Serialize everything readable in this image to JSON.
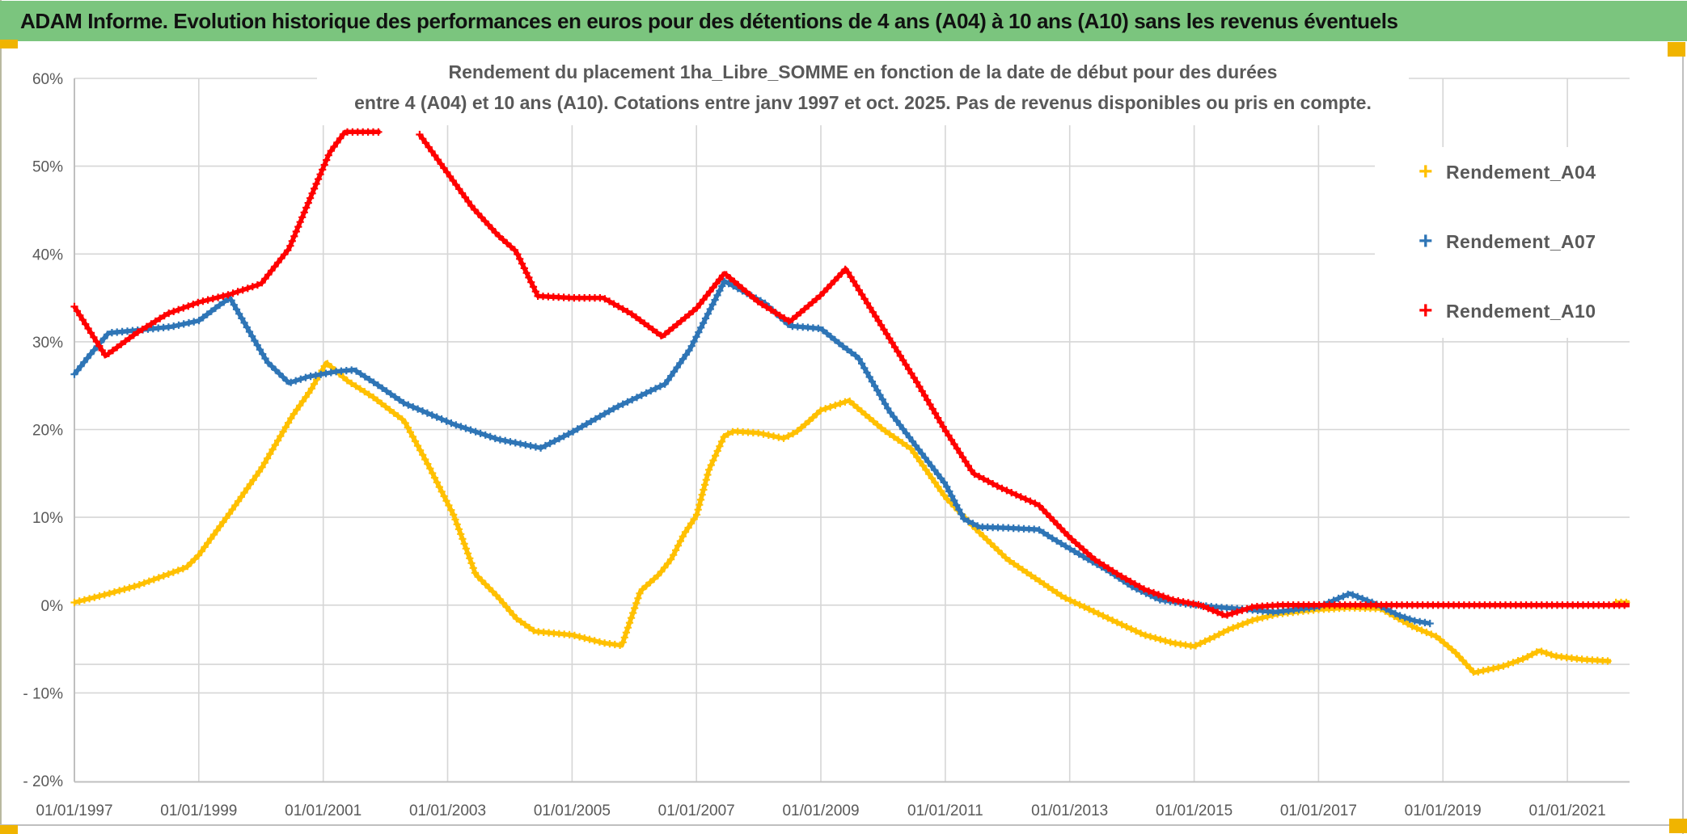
{
  "page": {
    "title": "ADAM Informe. Evolution historique des performances en euros pour des détentions de 4 ans (A04) à 10 ans (A10) sans les revenus éventuels",
    "title_bar_color": "#7bc57e",
    "corner_mark_color": "#f0b400",
    "text_grey": "#595959",
    "gridline_color": "#d6d6d6",
    "axis_border_color": "#bfbfbf"
  },
  "chart_data": {
    "type": "line",
    "title_line1": "Rendement du placement 1ha_Libre_SOMME en fonction de la date de début pour des durées",
    "title_line2": "entre 4 (A04) et 10 ans (A10). Cotations entre janv 1997 et oct. 2025. Pas de revenus disponibles ou pris en compte.",
    "marker_glyph": "+",
    "grid": "on",
    "legend_position": "right-inside",
    "x_axis": {
      "min_year": 1997,
      "max_year": 2022,
      "tick_years": [
        1997,
        1999,
        2001,
        2003,
        2005,
        2007,
        2009,
        2011,
        2013,
        2015,
        2017,
        2019,
        2021
      ],
      "tick_labels": [
        "01/01/1997",
        "01/01/1999",
        "01/01/2001",
        "01/01/2003",
        "01/01/2005",
        "01/01/2007",
        "01/01/2009",
        "01/01/2011",
        "01/01/2013",
        "01/01/2015",
        "01/01/2017",
        "01/01/2019",
        "01/01/2021"
      ]
    },
    "y_axis": {
      "min": -20,
      "max": 60,
      "unit": "%",
      "tick_values": [
        60,
        50,
        40,
        30,
        20,
        10,
        0,
        -10,
        -20
      ],
      "tick_labels": [
        "60%",
        "50%",
        "40%",
        "30%",
        "20%",
        "10%",
        "0%",
        "- 10%",
        "- 20%"
      ]
    },
    "extra_axis_line_value": -6.75,
    "legend": [
      {
        "label": "Rendement_A04",
        "marker": "+",
        "color": "#FFC000"
      },
      {
        "label": "Rendement_A07",
        "marker": "+",
        "color": "#2E75B6"
      },
      {
        "label": "Rendement_A10",
        "marker": "+",
        "color": "#FF0000"
      }
    ],
    "series": [
      {
        "name": "Rendement_A04",
        "color": "#FFC000",
        "segments": [
          [
            [
              1997.0,
              0.3
            ],
            [
              1997.5,
              1.2
            ],
            [
              1998.0,
              2.2
            ],
            [
              1998.5,
              3.5
            ],
            [
              1998.8,
              4.3
            ],
            [
              1999.0,
              5.7
            ],
            [
              1999.5,
              10.5
            ],
            [
              2000.0,
              15.5
            ],
            [
              2000.5,
              21.5
            ],
            [
              2000.8,
              24.5
            ],
            [
              2001.05,
              27.6
            ],
            [
              2001.4,
              25.5
            ],
            [
              2001.8,
              23.7
            ],
            [
              2002.3,
              21.0
            ],
            [
              2002.7,
              15.8
            ],
            [
              2003.1,
              10.2
            ],
            [
              2003.45,
              3.5
            ],
            [
              2003.8,
              1.0
            ],
            [
              2004.1,
              -1.5
            ],
            [
              2004.4,
              -3.0
            ],
            [
              2005.0,
              -3.4
            ],
            [
              2005.5,
              -4.3
            ],
            [
              2005.8,
              -4.6
            ],
            [
              2006.1,
              1.6
            ],
            [
              2006.4,
              3.5
            ],
            [
              2006.6,
              5.3
            ],
            [
              2006.8,
              8.1
            ],
            [
              2007.0,
              10.2
            ],
            [
              2007.2,
              15.4
            ],
            [
              2007.45,
              19.3
            ],
            [
              2007.6,
              19.8
            ],
            [
              2008.0,
              19.6
            ],
            [
              2008.4,
              19.0
            ],
            [
              2008.6,
              19.7
            ],
            [
              2008.8,
              20.9
            ],
            [
              2009.0,
              22.2
            ],
            [
              2009.45,
              23.3
            ],
            [
              2010.0,
              20.0
            ],
            [
              2010.45,
              17.8
            ],
            [
              2011.0,
              12.3
            ],
            [
              2011.5,
              8.6
            ],
            [
              2012.0,
              5.2
            ],
            [
              2012.5,
              2.8
            ],
            [
              2012.9,
              0.9
            ],
            [
              2013.35,
              -0.6
            ],
            [
              2013.8,
              -2.1
            ],
            [
              2014.2,
              -3.4
            ],
            [
              2014.65,
              -4.3
            ],
            [
              2015.0,
              -4.7
            ],
            [
              2015.3,
              -3.7
            ],
            [
              2015.55,
              -2.8
            ],
            [
              2015.95,
              -1.7
            ],
            [
              2016.35,
              -1.0
            ],
            [
              2017.0,
              -0.5
            ],
            [
              2017.5,
              -0.3
            ],
            [
              2018.0,
              -0.4
            ],
            [
              2018.5,
              -2.4
            ],
            [
              2018.9,
              -3.6
            ],
            [
              2019.2,
              -5.4
            ],
            [
              2019.5,
              -7.7
            ],
            [
              2019.95,
              -7.0
            ],
            [
              2020.3,
              -6.1
            ],
            [
              2020.55,
              -5.2
            ],
            [
              2020.8,
              -5.8
            ],
            [
              2021.25,
              -6.2
            ],
            [
              2021.7,
              -6.4
            ]
          ],
          [
            [
              2021.78,
              0.3
            ],
            [
              2022.0,
              0.3
            ]
          ]
        ]
      },
      {
        "name": "Rendement_A07",
        "color": "#2E75B6",
        "segments": [
          [
            [
              1997.0,
              26.3
            ],
            [
              1997.25,
              28.5
            ],
            [
              1997.55,
              31.0
            ],
            [
              1998.0,
              31.3
            ],
            [
              1998.55,
              31.7
            ],
            [
              1999.0,
              32.4
            ],
            [
              1999.3,
              34.0
            ],
            [
              1999.5,
              35.0
            ],
            [
              1999.9,
              30.1
            ],
            [
              2000.1,
              27.7
            ],
            [
              2000.45,
              25.3
            ],
            [
              2000.75,
              26.0
            ],
            [
              2001.2,
              26.6
            ],
            [
              2001.5,
              26.8
            ],
            [
              2001.85,
              25.2
            ],
            [
              2002.3,
              23.0
            ],
            [
              2003.1,
              20.6
            ],
            [
              2003.8,
              18.9
            ],
            [
              2004.5,
              17.9
            ],
            [
              2005.0,
              19.7
            ],
            [
              2005.7,
              22.5
            ],
            [
              2006.5,
              25.2
            ],
            [
              2006.9,
              29.2
            ],
            [
              2007.45,
              36.9
            ],
            [
              2008.1,
              34.4
            ],
            [
              2008.5,
              31.8
            ],
            [
              2009.0,
              31.5
            ],
            [
              2009.35,
              29.5
            ],
            [
              2009.6,
              28.2
            ],
            [
              2010.1,
              22.1
            ],
            [
              2010.5,
              18.4
            ],
            [
              2011.0,
              13.8
            ],
            [
              2011.3,
              9.8
            ],
            [
              2011.55,
              8.9
            ],
            [
              2012.0,
              8.8
            ],
            [
              2012.5,
              8.6
            ],
            [
              2012.7,
              7.7
            ],
            [
              2013.15,
              5.8
            ],
            [
              2013.6,
              4.0
            ],
            [
              2014.0,
              2.1
            ],
            [
              2014.45,
              0.6
            ],
            [
              2014.9,
              0.1
            ],
            [
              2015.3,
              -0.2
            ],
            [
              2015.85,
              -0.5
            ],
            [
              2016.3,
              -0.8
            ],
            [
              2017.0,
              -0.2
            ],
            [
              2017.5,
              1.3
            ],
            [
              2017.9,
              0.2
            ],
            [
              2018.3,
              -1.2
            ],
            [
              2018.55,
              -1.8
            ],
            [
              2018.8,
              -2.1
            ]
          ]
        ]
      },
      {
        "name": "Rendement_A10",
        "color": "#FF0000",
        "segments": [
          [
            [
              1997.0,
              34.0
            ],
            [
              1997.5,
              28.4
            ],
            [
              1998.0,
              31.0
            ],
            [
              1998.5,
              33.2
            ],
            [
              1999.0,
              34.5
            ],
            [
              1999.5,
              35.4
            ],
            [
              2000.0,
              36.6
            ],
            [
              2000.45,
              40.6
            ],
            [
              2000.8,
              46.5
            ],
            [
              2001.1,
              51.5
            ],
            [
              2001.35,
              53.9
            ],
            [
              2001.92,
              53.9
            ]
          ],
          [
            [
              2002.55,
              53.6
            ],
            [
              2003.0,
              49.2
            ],
            [
              2003.4,
              45.3
            ],
            [
              2003.8,
              42.2
            ],
            [
              2004.1,
              40.3
            ],
            [
              2004.45,
              35.2
            ],
            [
              2005.0,
              35.0
            ],
            [
              2005.5,
              35.0
            ],
            [
              2005.95,
              33.2
            ],
            [
              2006.45,
              30.6
            ],
            [
              2007.0,
              33.8
            ],
            [
              2007.45,
              37.8
            ],
            [
              2008.0,
              34.5
            ],
            [
              2008.5,
              32.3
            ],
            [
              2009.0,
              35.3
            ],
            [
              2009.4,
              38.3
            ],
            [
              2010.1,
              30.4
            ],
            [
              2010.55,
              25.3
            ],
            [
              2011.0,
              19.9
            ],
            [
              2011.45,
              15.0
            ],
            [
              2011.85,
              13.5
            ],
            [
              2012.5,
              11.4
            ],
            [
              2013.0,
              7.7
            ],
            [
              2013.4,
              5.2
            ],
            [
              2013.8,
              3.4
            ],
            [
              2014.2,
              1.8
            ],
            [
              2014.65,
              0.6
            ],
            [
              2015.1,
              0.0
            ],
            [
              2015.5,
              -1.2
            ],
            [
              2015.95,
              -0.2
            ],
            [
              2016.4,
              0.0
            ],
            [
              2022.0,
              0.0
            ]
          ]
        ]
      }
    ]
  }
}
